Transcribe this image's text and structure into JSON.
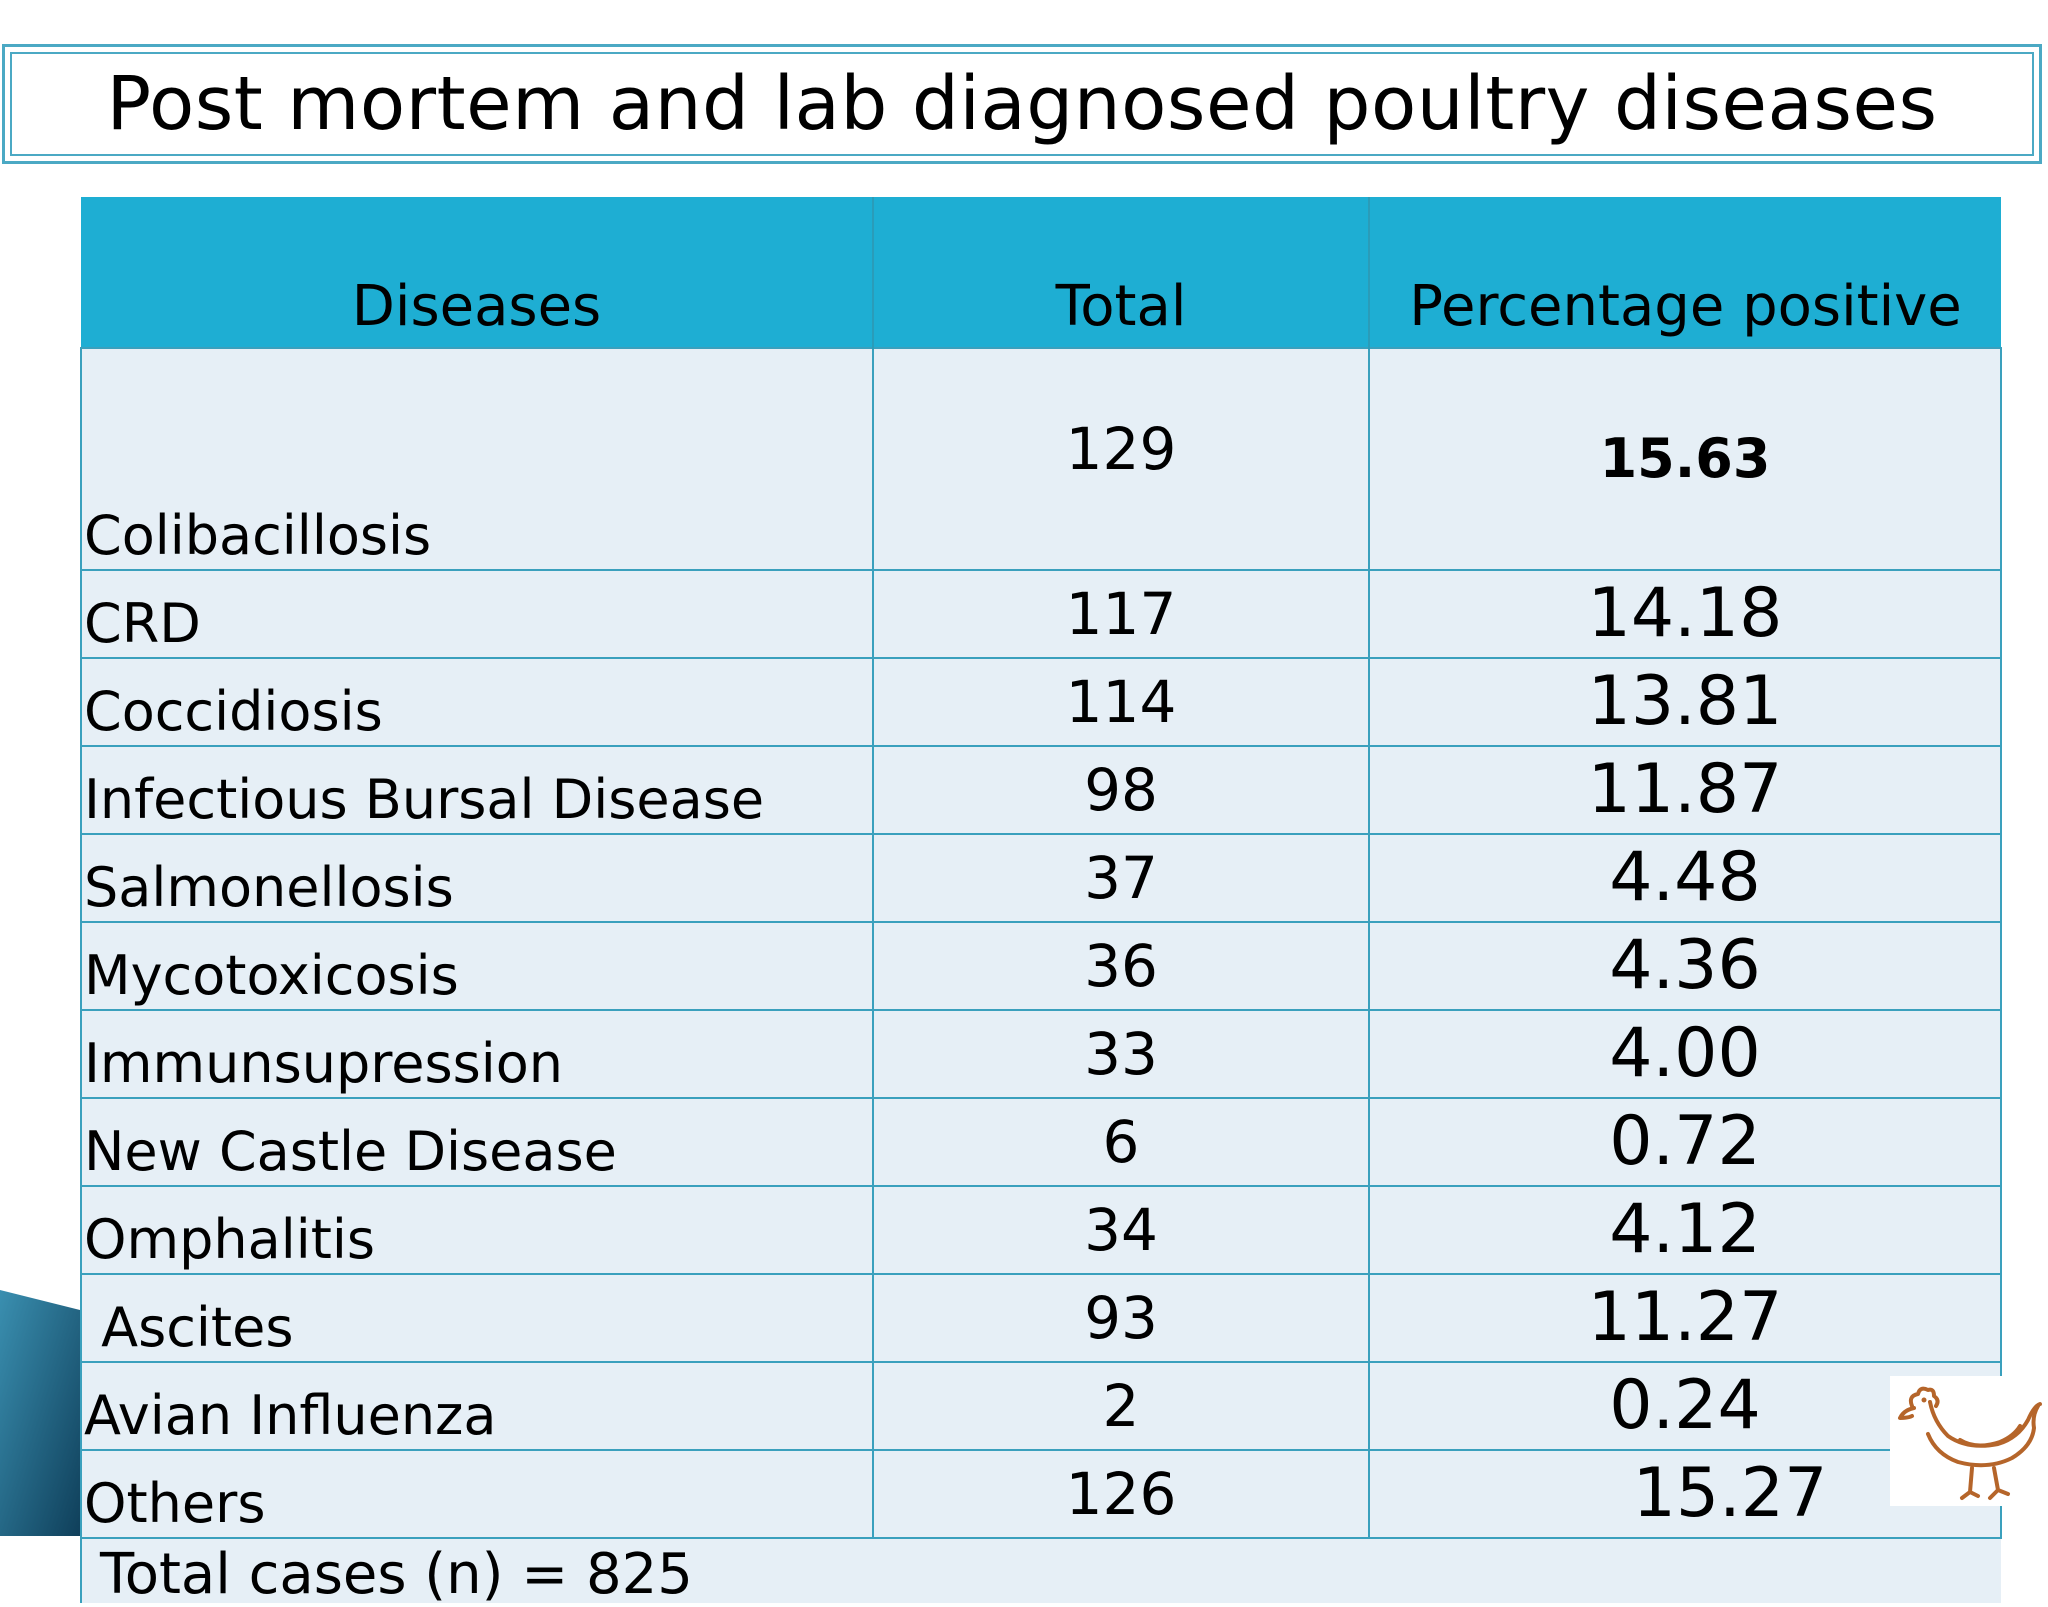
{
  "title": "Post mortem and lab diagnosed poultry diseases",
  "table": {
    "headers": [
      "Diseases",
      "Total",
      "Percentage positive"
    ],
    "rows": [
      {
        "disease": "Colibacillosis",
        "total": "129",
        "percent": "15.63"
      },
      {
        "disease": "CRD",
        "total": "117",
        "percent": "14.18"
      },
      {
        "disease": "Coccidiosis",
        "total": "114",
        "percent": "13.81"
      },
      {
        "disease": "Infectious Bursal Disease",
        "total": "98",
        "percent": "11.87"
      },
      {
        "disease": "Salmonellosis",
        "total": "37",
        "percent": "4.48"
      },
      {
        "disease": "Mycotoxicosis",
        "total": "36",
        "percent": "4.36"
      },
      {
        "disease": "Immunsupression",
        "total": "33",
        "percent": "4.00"
      },
      {
        "disease": "New Castle Disease",
        "total": "6",
        "percent": "0.72"
      },
      {
        "disease": "Omphalitis",
        "total": "34",
        "percent": "4.12"
      },
      {
        "disease": " Ascites",
        "total": "93",
        "percent": "11.27"
      },
      {
        "disease": "Avian Influenza",
        "total": "2",
        "percent": "0.24"
      },
      {
        "disease": "Others",
        "total": "126",
        "percent": "15.27"
      }
    ],
    "footer": "Total cases (n) = 825"
  },
  "colors": {
    "header_bg": "#1eaed3",
    "cell_bg": "#e6eff6",
    "border": "#3aa0bd",
    "title_border": "#4ba9c4"
  },
  "icons": [
    "hen-icon",
    "slide-corner-decoration"
  ]
}
